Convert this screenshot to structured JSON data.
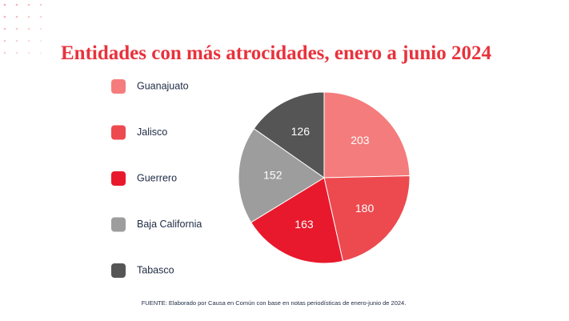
{
  "chart_data": {
    "type": "pie",
    "title": "Entidades con más atrocidades, enero a junio 2024",
    "categories": [
      "Guanajuato",
      "Jalisco",
      "Guerrero",
      "Baja California",
      "Tabasco"
    ],
    "values": [
      203,
      180,
      163,
      152,
      126
    ],
    "colors": [
      "#f47c7c",
      "#ec4a4f",
      "#e8192c",
      "#9d9d9d",
      "#555555"
    ],
    "legend": "left",
    "source": "FUENTE: Elaborado por Causa en Común con base en notas periodísticas de enero-junio de 2024."
  }
}
